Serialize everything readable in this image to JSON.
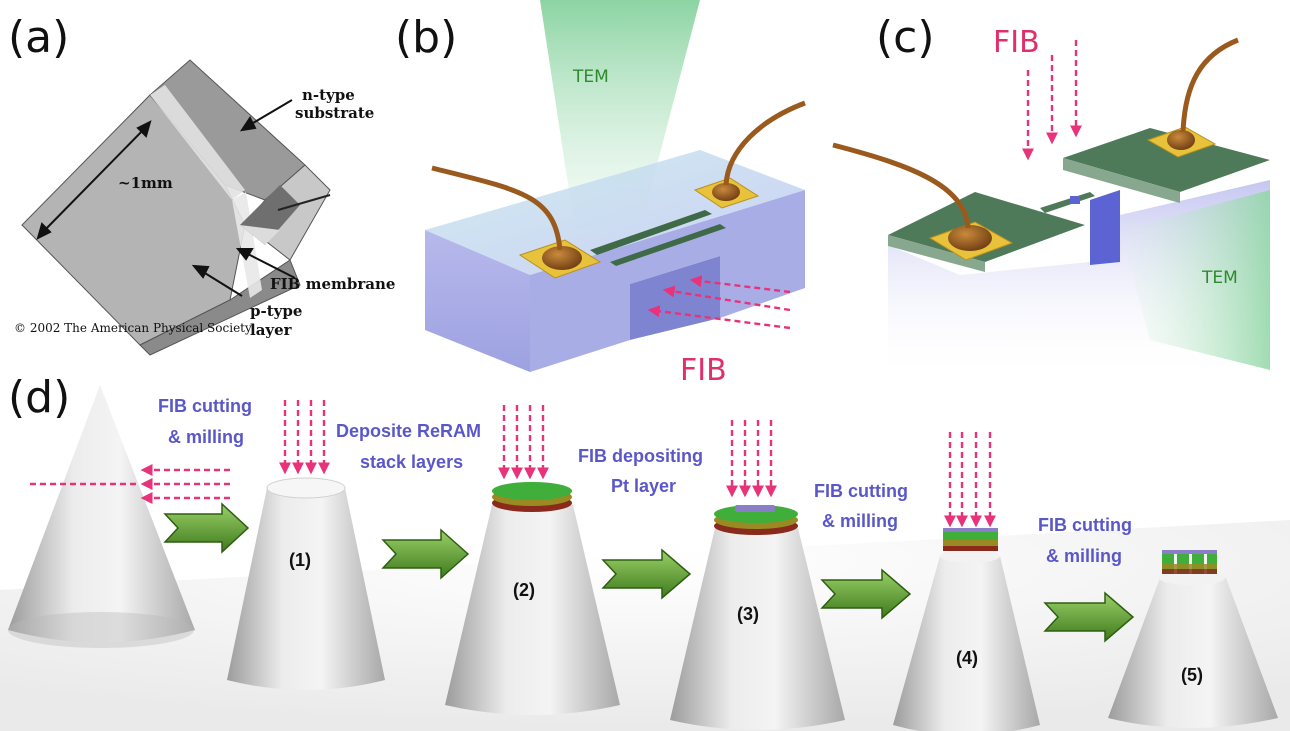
{
  "panels": {
    "a": {
      "label": "(a)",
      "n_type": [
        "n-type",
        "substrate"
      ],
      "size": "~1mm",
      "fib_membrane": "FIB membrane",
      "p_type": [
        "p-type",
        "layer"
      ],
      "copyright": "©  2002  The American Physical Society"
    },
    "b": {
      "label": "(b)",
      "tem": "TEM",
      "fib": "FIB"
    },
    "c": {
      "label": "(c)",
      "fib": "FIB",
      "tem": "TEM"
    },
    "d": {
      "label": "(d)",
      "steps": [
        {
          "lines": [
            "FIB cutting",
            "& milling"
          ]
        },
        {
          "lines": [
            "Deposite ReRAM",
            "stack layers"
          ]
        },
        {
          "lines": [
            "FIB depositing",
            "Pt layer"
          ]
        },
        {
          "lines": [
            "FIB cutting",
            "& milling"
          ]
        },
        {
          "lines": [
            "FIB cutting",
            "& milling"
          ]
        }
      ],
      "cones": [
        "(1)",
        "(2)",
        "(3)",
        "(4)",
        "(5)"
      ]
    }
  },
  "colors": {
    "fib_arrow": "#e8337a",
    "tem_beam": "#9fd8b0",
    "step_text": "#5a58c8",
    "process_arrow": "#5aa02c",
    "wire": "#9a5a1e",
    "pad": "#e8c23a",
    "membrane_top": "#4f7a5a",
    "substrate": "#b9bde8"
  }
}
